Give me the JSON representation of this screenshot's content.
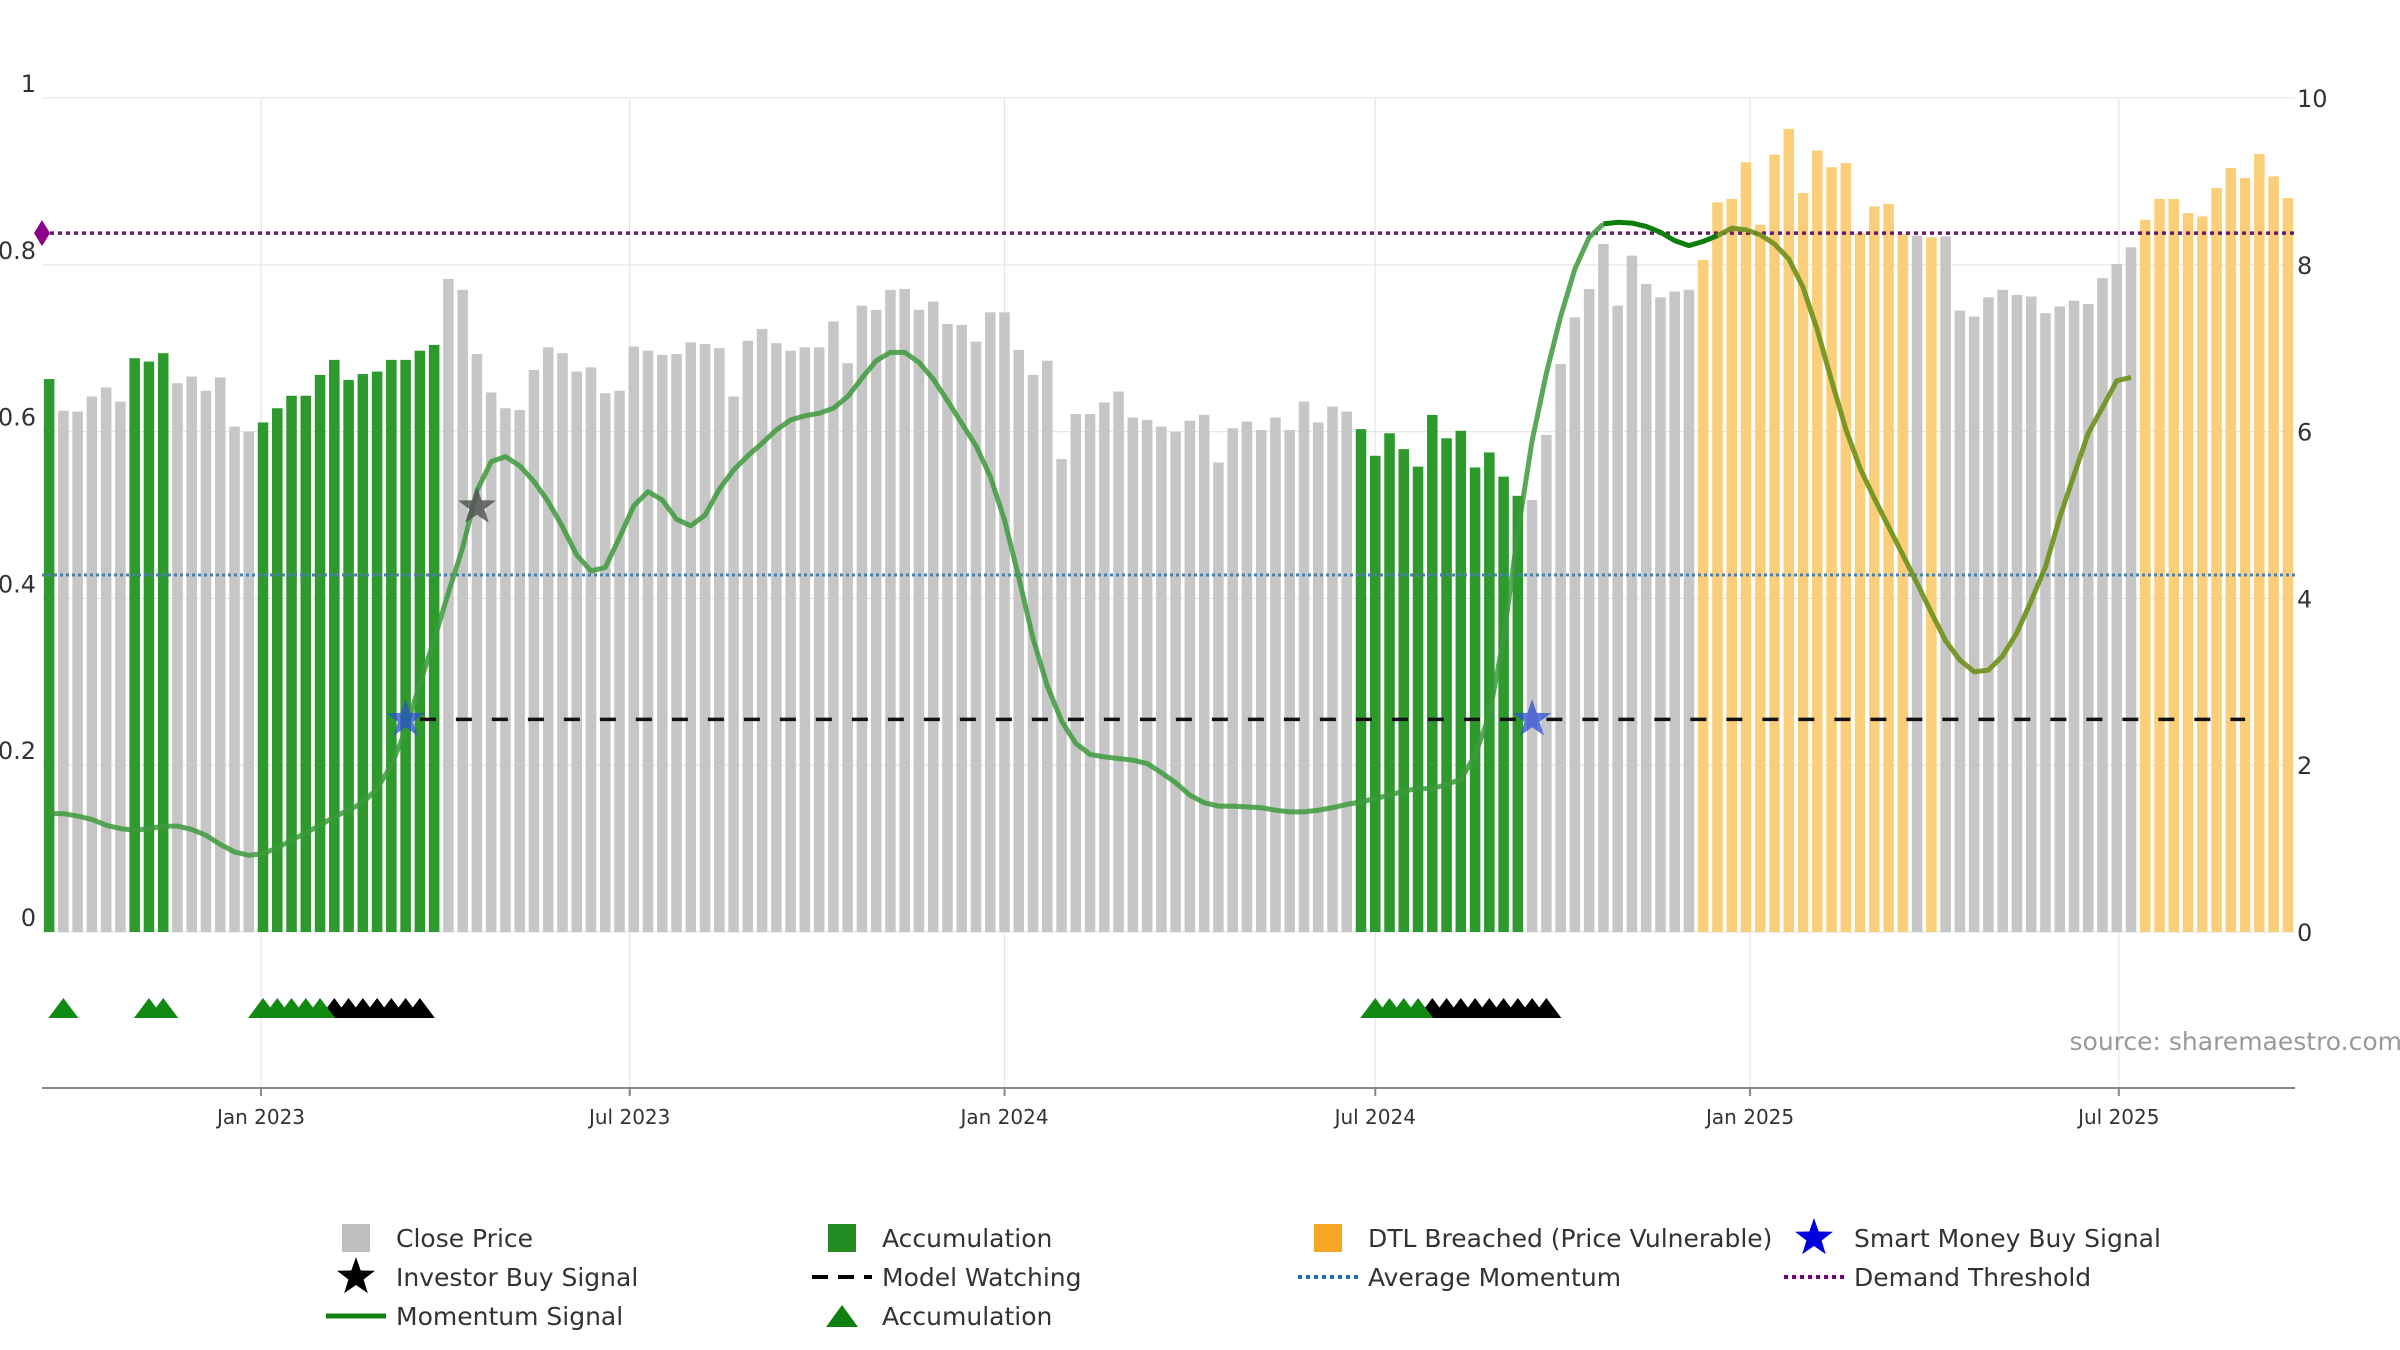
{
  "chart_data": {
    "type": "bar",
    "title": "",
    "source": "source: sharemaestro.com",
    "x_start": "2022-09-19",
    "x_step_weeks": 1,
    "left_axis": {
      "range": [
        0,
        1
      ],
      "ticks": [
        0,
        0.2,
        0.4,
        0.6,
        0.8,
        1
      ],
      "tick_labels": [
        "0",
        "0.2",
        "0.4",
        "0.6",
        "0.8",
        "1"
      ]
    },
    "right_axis": {
      "range": [
        0,
        10
      ],
      "ticks": [
        0,
        2,
        4,
        6,
        8,
        10
      ],
      "tick_labels": [
        "0",
        "2",
        "4",
        "6",
        "8",
        "10"
      ]
    },
    "x_ticks": [
      {
        "date": "2023-01-01",
        "label": "Jan 2023"
      },
      {
        "date": "2023-07-01",
        "label": "Jul 2023"
      },
      {
        "date": "2024-01-01",
        "label": "Jan 2024"
      },
      {
        "date": "2024-07-01",
        "label": "Jul 2024"
      },
      {
        "date": "2025-01-01",
        "label": "Jan 2025"
      },
      {
        "date": "2025-07-01",
        "label": "Jul 2025"
      }
    ],
    "close_price": [
      0.663,
      0.625,
      0.624,
      0.642,
      0.653,
      0.636,
      0.688,
      0.684,
      0.694,
      0.658,
      0.666,
      0.649,
      0.665,
      0.606,
      0.6,
      0.611,
      0.628,
      0.643,
      0.643,
      0.668,
      0.686,
      0.662,
      0.669,
      0.672,
      0.686,
      0.686,
      0.697,
      0.704,
      0.783,
      0.77,
      0.693,
      0.647,
      0.628,
      0.626,
      0.674,
      0.701,
      0.694,
      0.672,
      0.677,
      0.646,
      0.649,
      0.702,
      0.697,
      0.692,
      0.693,
      0.707,
      0.705,
      0.7,
      0.642,
      0.709,
      0.723,
      0.706,
      0.697,
      0.701,
      0.701,
      0.732,
      0.682,
      0.751,
      0.746,
      0.77,
      0.771,
      0.746,
      0.756,
      0.729,
      0.728,
      0.708,
      0.743,
      0.743,
      0.698,
      0.668,
      0.685,
      0.567,
      0.621,
      0.621,
      0.635,
      0.648,
      0.617,
      0.614,
      0.606,
      0.6,
      0.613,
      0.62,
      0.563,
      0.604,
      0.612,
      0.602,
      0.617,
      0.602,
      0.636,
      0.611,
      0.63,
      0.624,
      0.603,
      0.571,
      0.598,
      0.579,
      0.558,
      0.62,
      0.592,
      0.601,
      0.557,
      0.575,
      0.546,
      0.523,
      0.518,
      0.596,
      0.681,
      0.737,
      0.771,
      0.825,
      0.751,
      0.811,
      0.777,
      0.761,
      0.768,
      0.77,
      0.806,
      0.875,
      0.879,
      0.923,
      0.848,
      0.932,
      0.963,
      0.886,
      0.937,
      0.917,
      0.922,
      0.838,
      0.87,
      0.873,
      0.837,
      0.835,
      0.833,
      0.834,
      0.745,
      0.738,
      0.761,
      0.77,
      0.764,
      0.762,
      0.742,
      0.75,
      0.757,
      0.753,
      0.784,
      0.801,
      0.821,
      0.854,
      0.879,
      0.879,
      0.862,
      0.858,
      0.892,
      0.916,
      0.904,
      0.933,
      0.906,
      0.88
    ],
    "bar_category": "AGGGGGAAAGGGGGGAAAAAAAAAAAAAGGGGGGGGGGGGGGGGGGGGGGGGGGGGGGGGGGGGGGGGGGGGGGGGGGGGGGGGGGGGGGGGAAAAAAAAAAAAGGGGGGGGGGGODDDDDDDDDDDDDDDGDGGGGGGGGGGGGGGDDDDDDDDDDDD",
    "momentum_signal": [
      1.42,
      1.42,
      1.39,
      1.35,
      1.28,
      1.24,
      1.22,
      1.24,
      1.27,
      1.27,
      1.23,
      1.16,
      1.05,
      0.96,
      0.92,
      0.94,
      1.01,
      1.1,
      1.19,
      1.28,
      1.38,
      1.46,
      1.55,
      1.72,
      2.0,
      2.42,
      2.98,
      3.5,
      4.07,
      4.61,
      5.29,
      5.64,
      5.7,
      5.59,
      5.4,
      5.16,
      4.86,
      4.52,
      4.33,
      4.37,
      4.73,
      5.11,
      5.28,
      5.18,
      4.95,
      4.87,
      5.0,
      5.31,
      5.54,
      5.71,
      5.86,
      6.02,
      6.14,
      6.19,
      6.22,
      6.28,
      6.42,
      6.64,
      6.85,
      6.95,
      6.95,
      6.83,
      6.63,
      6.37,
      6.1,
      5.83,
      5.46,
      4.94,
      4.25,
      3.52,
      2.95,
      2.53,
      2.26,
      2.13,
      2.1,
      2.08,
      2.06,
      2.02,
      1.91,
      1.79,
      1.64,
      1.55,
      1.51,
      1.51,
      1.5,
      1.49,
      1.46,
      1.44,
      1.44,
      1.46,
      1.49,
      1.53,
      1.56,
      1.6,
      1.64,
      1.69,
      1.72,
      1.72,
      1.77,
      1.83,
      2.12,
      2.6,
      3.52,
      4.8,
      5.89,
      6.7,
      7.38,
      7.95,
      8.33,
      8.49,
      8.51,
      8.5,
      8.46,
      8.39,
      8.29,
      8.23,
      8.28,
      8.35,
      8.44,
      8.42,
      8.36,
      8.25,
      8.07,
      7.73,
      7.22,
      6.61,
      6.03,
      5.56,
      5.2,
      4.86,
      4.52,
      4.18,
      3.83,
      3.49,
      3.26,
      3.12,
      3.14,
      3.31,
      3.59,
      3.97,
      4.38,
      4.97,
      5.48,
      5.98,
      6.29,
      6.61,
      6.65
    ],
    "momentum_highlight_from_index": 109,
    "investor_buy_signal": [
      {
        "index": 30,
        "value": 0.51
      }
    ],
    "smart_money_buy_signal": [
      {
        "index": 25,
        "value": 0.255
      },
      {
        "index": 104,
        "value": 0.255
      }
    ],
    "model_watching": {
      "value": 0.255,
      "segments": [
        [
          26,
          103
        ],
        [
          105,
          154
        ]
      ]
    },
    "average_momentum": 0.428,
    "demand_threshold": 0.838,
    "green_triangle_indices": [
      1,
      7,
      8,
      15,
      16,
      17,
      18,
      19,
      93,
      94,
      95,
      96
    ],
    "black_triangle_indices": [
      20,
      21,
      22,
      23,
      24,
      25,
      26,
      97,
      98,
      99,
      100,
      101,
      102,
      103,
      104,
      105
    ],
    "legend": [
      {
        "label": "Close Price",
        "symbol": "square",
        "color": "#bfbfbf"
      },
      {
        "label": "Accumulation",
        "symbol": "square",
        "color": "#228b22"
      },
      {
        "label": "DTL Breached (Price Vulnerable)",
        "symbol": "square",
        "color": "#f5a623"
      },
      {
        "label": "Smart Money Buy Signal",
        "symbol": "star",
        "color": "#0000dd"
      },
      {
        "label": "Investor Buy Signal",
        "symbol": "star",
        "color": "#000000"
      },
      {
        "label": "Model Watching",
        "symbol": "dash",
        "color": "#000000"
      },
      {
        "label": "Average Momentum",
        "symbol": "dotted",
        "color": "#1f6fa8"
      },
      {
        "label": "Demand Threshold",
        "symbol": "dotted",
        "color": "#7a007a"
      },
      {
        "label": "Momentum Signal",
        "symbol": "line",
        "color": "#108010"
      },
      {
        "label": "Accumulation",
        "symbol": "triangle",
        "color": "#108010"
      }
    ],
    "colors": {
      "grey_bar": "#c6c6c6",
      "green_bar": "#2e9a2e",
      "orange_bar": "#fbcf7a",
      "momentum_line": "#3c9a3c",
      "momentum_line_highlight": "#0a7d0a",
      "momentum_line_late": "#6d8f1a",
      "avg_momentum": "#4a7fa8",
      "demand_threshold": "#6a1a6a",
      "smart_star": "#2a4ed0",
      "investor_star": "#555555",
      "grid": "#e6e6e6",
      "axis": "#888888"
    }
  }
}
